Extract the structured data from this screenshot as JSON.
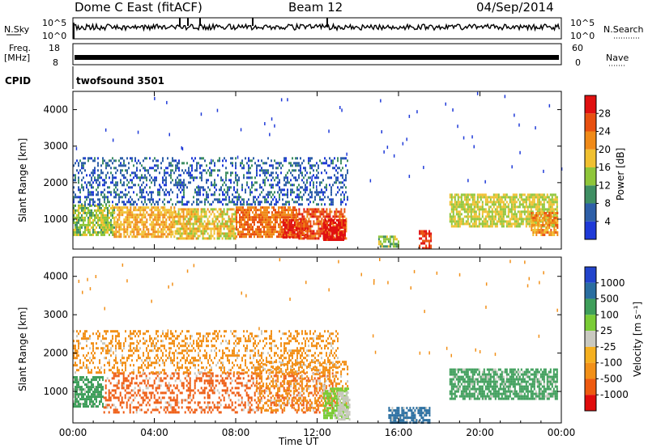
{
  "header": {
    "station": "Dome C East (fitACF)",
    "beam": "Beam 12",
    "date": "04/Sep/2014"
  },
  "strip_panels": {
    "nsky_label": "N.Sky",
    "nsky_ticks": [
      "10^5",
      "10^0"
    ],
    "nsearch_label": "N.Search",
    "nsearch_ticks": [
      "10^5",
      "10^0"
    ],
    "freq_label_1": "Freq.",
    "freq_label_2": "[MHz]",
    "freq_ticks": [
      "18",
      "8"
    ],
    "nave_label": "Nave",
    "nave_ticks": [
      "60",
      "0"
    ],
    "cpid_label": "CPID",
    "cpid_value": "twofsound 3501"
  },
  "x_axis": {
    "label": "Time UT",
    "ticks": [
      "00:00",
      "04:00",
      "08:00",
      "12:00",
      "16:00",
      "20:00",
      "00:00"
    ]
  },
  "colors": {
    "power": [
      "#1f3ad8",
      "#2e5fa8",
      "#3f8f63",
      "#8fc63a",
      "#f0c030",
      "#f08a18",
      "#e85010",
      "#e01010"
    ],
    "velocity": [
      "#e00c0c",
      "#ee5a10",
      "#f29018",
      "#f5b020",
      "#c9c9c0",
      "#7acc36",
      "#3e9e5a",
      "#2a6ea0",
      "#2244cc"
    ]
  },
  "chart_data": [
    {
      "type": "heatmap",
      "name": "Power",
      "ylabel": "Slant Range [km]",
      "xlabel": "",
      "xlim": [
        0,
        24
      ],
      "ylim": [
        180,
        4500
      ],
      "yticks": [
        "1000",
        "2000",
        "3000",
        "4000"
      ],
      "colorbar": {
        "label": "Power [dB]",
        "ticks": [
          "4",
          "8",
          "12",
          "16",
          "20",
          "24",
          "28"
        ],
        "range": [
          0,
          32
        ]
      },
      "regions": [
        {
          "t": [
            0.0,
            2.0
          ],
          "r": [
            600,
            1400
          ],
          "v": 14
        },
        {
          "t": [
            2.0,
            5.0
          ],
          "r": [
            550,
            1350
          ],
          "v": 20
        },
        {
          "t": [
            5.0,
            8.0
          ],
          "r": [
            500,
            1300
          ],
          "v": 18
        },
        {
          "t": [
            8.0,
            11.0
          ],
          "r": [
            500,
            1350
          ],
          "v": 24
        },
        {
          "t": [
            10.3,
            11.5
          ],
          "r": [
            500,
            1000
          ],
          "v": 30
        },
        {
          "t": [
            11.0,
            13.4
          ],
          "r": [
            450,
            1300
          ],
          "v": 26
        },
        {
          "t": [
            12.3,
            13.4
          ],
          "r": [
            450,
            1000
          ],
          "v": 30
        },
        {
          "t": [
            17.0,
            17.6
          ],
          "r": [
            200,
            700
          ],
          "v": 28
        },
        {
          "t": [
            15.0,
            16.0
          ],
          "r": [
            250,
            550
          ],
          "v": 14
        },
        {
          "t": [
            18.5,
            23.8
          ],
          "r": [
            800,
            1700
          ],
          "v": 16
        },
        {
          "t": [
            22.5,
            23.8
          ],
          "r": [
            600,
            1200
          ],
          "v": 22
        },
        {
          "t": [
            0.0,
            13.5
          ],
          "r": [
            1400,
            2700
          ],
          "v": 6
        }
      ]
    },
    {
      "type": "heatmap",
      "name": "Velocity",
      "ylabel": "Slant Range [km]",
      "xlabel": "Time UT",
      "xlim": [
        0,
        24
      ],
      "ylim": [
        180,
        4500
      ],
      "yticks": [
        "1000",
        "2000",
        "3000",
        "4000"
      ],
      "colorbar": {
        "label": "Velocity [m s⁻¹]",
        "ticks": [
          "1000",
          "500",
          "100",
          "25",
          "-25",
          "-100",
          "-500",
          "-1000"
        ]
      },
      "regions": [
        {
          "t": [
            0.0,
            1.5
          ],
          "r": [
            600,
            1400
          ],
          "v": "green"
        },
        {
          "t": [
            1.5,
            13.0
          ],
          "r": [
            450,
            1500
          ],
          "v": "orange"
        },
        {
          "t": [
            9.0,
            13.5
          ],
          "r": [
            500,
            1800
          ],
          "v": "orange-light"
        },
        {
          "t": [
            12.3,
            13.5
          ],
          "r": [
            300,
            1100
          ],
          "v": "green-light"
        },
        {
          "t": [
            13.0,
            13.6
          ],
          "r": [
            300,
            1000
          ],
          "v": "grey"
        },
        {
          "t": [
            15.5,
            17.5
          ],
          "r": [
            200,
            600
          ],
          "v": "blue-green"
        },
        {
          "t": [
            18.5,
            23.8
          ],
          "r": [
            800,
            1600
          ],
          "v": "green"
        },
        {
          "t": [
            0.0,
            13.0
          ],
          "r": [
            1500,
            2600
          ],
          "v": "orange-light"
        }
      ]
    }
  ]
}
